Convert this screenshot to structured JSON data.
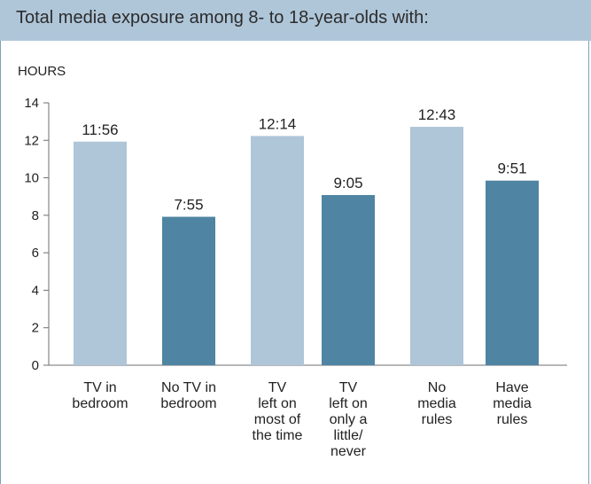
{
  "header": {
    "title": "Total media exposure among 8- to 18-year-olds with:"
  },
  "colors": {
    "light": "#afc5d8",
    "dark": "#4f85a2",
    "axis": "#6f6f6f",
    "header_bg": "#afc6d9"
  },
  "chart_data": {
    "type": "bar",
    "title": "Total media exposure among 8- to 18-year-olds with:",
    "ylabel": "HOURS",
    "xlabel": "",
    "ylim": [
      0,
      14
    ],
    "yticks": [
      0,
      2,
      4,
      6,
      8,
      10,
      12,
      14
    ],
    "grid": false,
    "legend": "none",
    "categories": [
      "TV in\nbedroom",
      "No TV in\nbedroom",
      "TV\nleft on\nmost of\nthe time",
      "TV\nleft on\nonly a\nlittle/\nnever",
      "No\nmedia\nrules",
      "Have\nmedia\nrules"
    ],
    "values": [
      11.93,
      7.92,
      12.23,
      9.08,
      12.72,
      9.85
    ],
    "value_labels": [
      "11:56",
      "7:55",
      "12:14",
      "9:05",
      "12:43",
      "9:51"
    ],
    "bar_colors": [
      "light",
      "dark",
      "light",
      "dark",
      "light",
      "dark"
    ]
  }
}
